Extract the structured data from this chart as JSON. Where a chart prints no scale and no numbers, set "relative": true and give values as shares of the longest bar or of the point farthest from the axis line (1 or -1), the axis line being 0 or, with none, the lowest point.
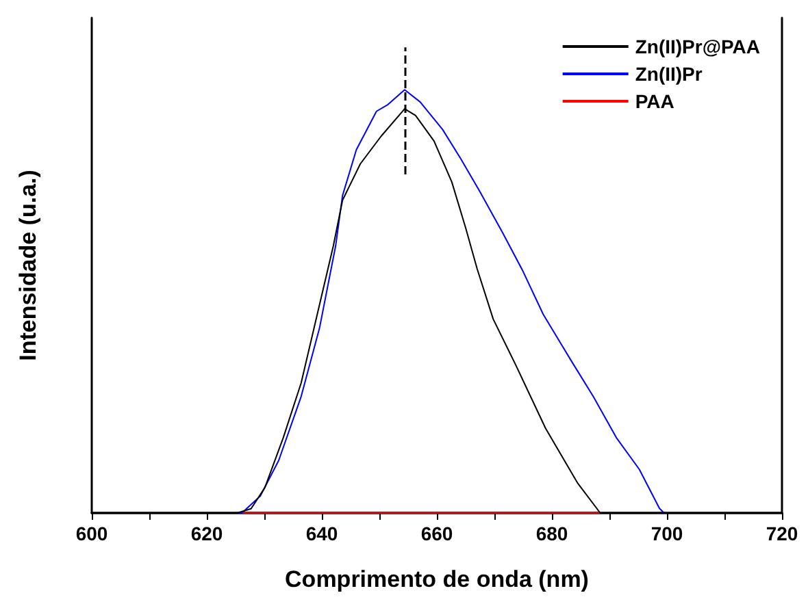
{
  "chart_data": {
    "type": "line",
    "relative": true,
    "xlabel": "Comprimento de onda (nm)",
    "ylabel": "Intensidade (u.a.)",
    "xlim": [
      600,
      720
    ],
    "xticks": [
      600,
      620,
      640,
      660,
      680,
      700,
      720
    ],
    "grid": false,
    "legend": "top right",
    "marker": "none",
    "line_style": "solid",
    "ref_lines": [
      {
        "axis": "x",
        "value": 654.4,
        "label": null,
        "color": "#000000",
        "line_style": "dashed"
      }
    ],
    "series": [
      {
        "name": "Zn(II)Pr@PAA",
        "color": "#000000",
        "x": [
          600,
          625.3,
          627.7,
          630.1,
          633.3,
          636.4,
          639.2,
          642.0,
          643.6,
          646.7,
          650.3,
          654.4,
          656.3,
          659.5,
          662.6,
          665.0,
          667.0,
          669.8,
          673.7,
          678.9,
          681.7,
          684.5,
          688.4,
          720
        ],
        "values": [
          0,
          0,
          0.01,
          0.06,
          0.178,
          0.307,
          0.469,
          0.631,
          0.739,
          0.825,
          0.89,
          0.955,
          0.939,
          0.879,
          0.782,
          0.674,
          0.577,
          0.458,
          0.35,
          0.2,
          0.135,
          0.07,
          0,
          0
        ]
      },
      {
        "name": "Zn(II)Pr",
        "color": "#0000ff",
        "x": [
          600,
          626.1,
          629.3,
          632.5,
          636.4,
          639.6,
          642.4,
          643.6,
          646.0,
          649.5,
          651.5,
          654.4,
          657.1,
          661.0,
          664.2,
          667.4,
          671.4,
          674.9,
          678.5,
          683.3,
          687.2,
          691.2,
          695.2,
          698.7,
          699.5,
          720
        ],
        "values": [
          0,
          0,
          0.04,
          0.124,
          0.275,
          0.437,
          0.631,
          0.75,
          0.858,
          0.949,
          0.965,
          1,
          0.971,
          0.906,
          0.836,
          0.761,
          0.663,
          0.573,
          0.469,
          0.361,
          0.275,
          0.178,
          0.103,
          0.011,
          0,
          0
        ]
      },
      {
        "name": "PAA",
        "color": "#ff0000",
        "x": [
          600,
          720
        ],
        "values": [
          0,
          0
        ]
      }
    ]
  }
}
